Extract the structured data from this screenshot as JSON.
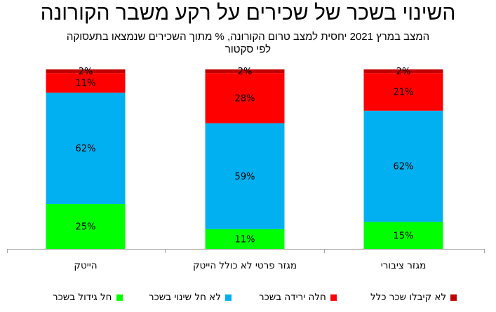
{
  "chart_data": {
    "type": "bar",
    "stacked": true,
    "title": "השינוי בשכר של שכירים על רקע משבר הקורונה",
    "subtitle_line1": "המצב במרץ 2021 יחסית למצב טרום הקורונה, % מתוך השכירים שנמצאו בתעסוקה",
    "subtitle_line2": "לפי סקטור",
    "categories": [
      "הייטק",
      "מגזר פרטי לא כולל הייטק",
      "מגזר ציבורי"
    ],
    "ylim": [
      0,
      100
    ],
    "grid": false,
    "legend_position": "bottom",
    "series": [
      {
        "name": "חל גידול בשכר",
        "color": "#00ff00",
        "values": [
          25,
          11,
          15
        ]
      },
      {
        "name": "לא חל שינוי בשכר",
        "color": "#00b0f0",
        "values": [
          62,
          59,
          62
        ]
      },
      {
        "name": "חלה ירידה בשכר",
        "color": "#ff0000",
        "values": [
          11,
          28,
          21
        ]
      },
      {
        "name": "לא קיבלו שכר כלל",
        "color": "#c00000",
        "values": [
          2,
          2,
          2
        ]
      }
    ]
  }
}
